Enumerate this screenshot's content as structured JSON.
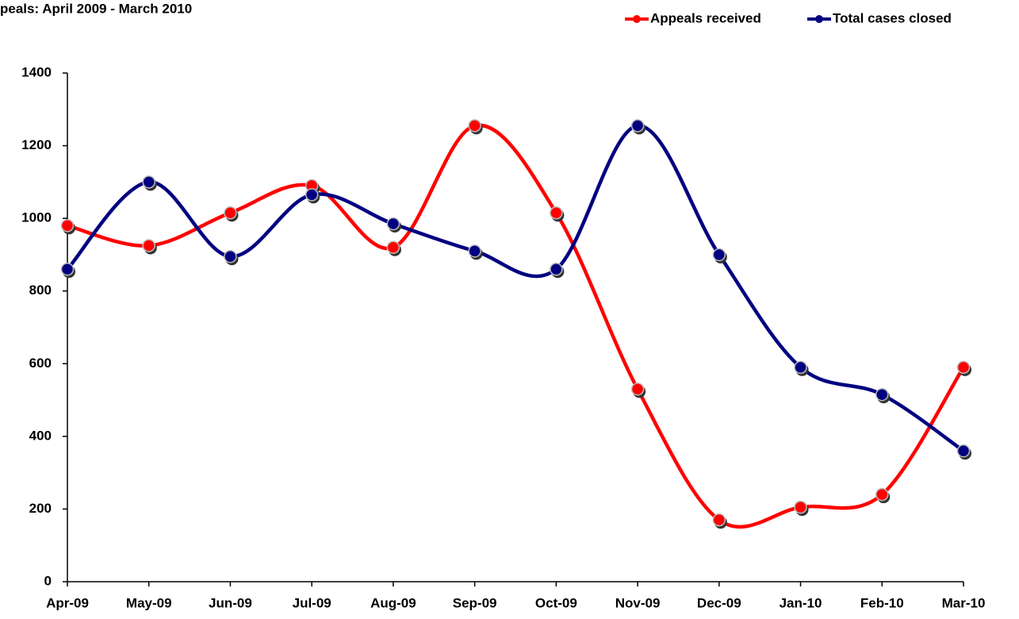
{
  "chart_data": {
    "type": "line",
    "title": "peals: April 2009 - March 2010",
    "categories": [
      "Apr-09",
      "May-09",
      "Jun-09",
      "Jul-09",
      "Aug-09",
      "Sep-09",
      "Oct-09",
      "Nov-09",
      "Dec-09",
      "Jan-10",
      "Feb-10",
      "Mar-10"
    ],
    "series": [
      {
        "name": "Appeals received",
        "color": "#ff0000",
        "values": [
          980,
          925,
          1015,
          1090,
          920,
          1255,
          1015,
          530,
          170,
          205,
          240,
          590
        ]
      },
      {
        "name": "Total cases closed",
        "color": "#000080",
        "values": [
          860,
          1100,
          895,
          1065,
          985,
          910,
          860,
          1255,
          900,
          590,
          515,
          360
        ]
      }
    ],
    "ylim": [
      0,
      1400
    ],
    "yticks": [
      0,
      200,
      400,
      600,
      800,
      1000,
      1200,
      1400
    ],
    "smooth": true,
    "legend": "top-right",
    "grid": false
  }
}
